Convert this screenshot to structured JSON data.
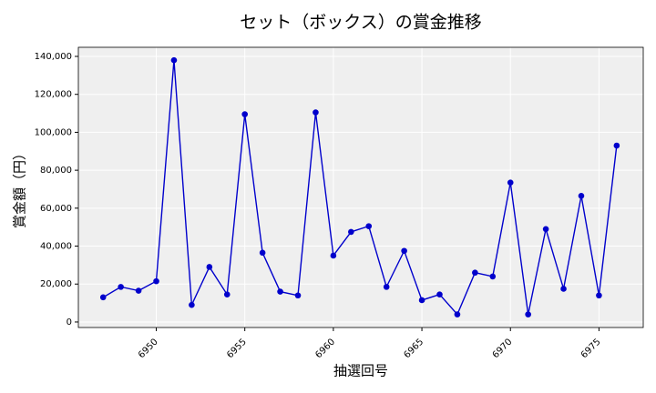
{
  "chart_data": {
    "type": "line",
    "title": "セット（ボックス）の賞金推移",
    "x_label": "抽選回号",
    "y_label": "賞金額（円）",
    "x": [
      6947,
      6948,
      6949,
      6950,
      6951,
      6952,
      6953,
      6954,
      6955,
      6956,
      6957,
      6958,
      6959,
      6960,
      6961,
      6962,
      6963,
      6964,
      6965,
      6966,
      6967,
      6968,
      6969,
      6970,
      6971,
      6972,
      6973,
      6974,
      6975,
      6976
    ],
    "series": [
      {
        "name": "賞金",
        "color": "#0000cc",
        "values": [
          13000,
          18500,
          16500,
          21500,
          138000,
          9000,
          29000,
          14500,
          109500,
          36500,
          16000,
          14000,
          110500,
          35000,
          47500,
          50500,
          18500,
          37500,
          11500,
          14500,
          4000,
          26000,
          24000,
          73500,
          4000,
          49000,
          17500,
          66500,
          14000,
          93000
        ]
      }
    ],
    "xlim": [
      6945.6,
      6977.5
    ],
    "xticks": [
      6950,
      6955,
      6960,
      6965,
      6970,
      6975
    ],
    "ylim": [
      -2900,
      144800
    ],
    "yticks": [
      0,
      {
        "value": 20000,
        "label": "20,000"
      },
      {
        "value": 40000,
        "label": "40,000"
      },
      {
        "value": 60000,
        "label": "60,000"
      },
      {
        "value": 80000,
        "label": "80,000"
      },
      {
        "value": 100000,
        "label": "100,000"
      },
      {
        "value": 120000,
        "label": "120,000"
      },
      {
        "value": 140000,
        "label": "140,000"
      }
    ],
    "grid": true
  }
}
